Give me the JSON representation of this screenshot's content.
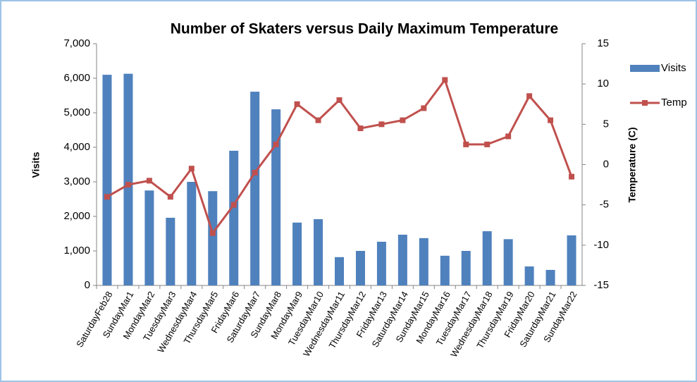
{
  "chart_data": {
    "type": "bar_line",
    "title": "Number of Skaters versus Daily Maximum Temperature",
    "y_label": "Visits",
    "y2_label": "Temperature (C)",
    "categories": [
      "SaturdayFeb28",
      "SundayMar1",
      "MondayMar2",
      "TuesdayMar3",
      "WednesdayMar4",
      "ThursdayMar5",
      "FridayMar6",
      "SaturdayMar7",
      "SundayMar8",
      "MondayMar9",
      "TuesdayMar10",
      "WednesdayMar11",
      "ThursdayMar12",
      "FridayMar13",
      "SaturdayMar14",
      "SundayMar15",
      "MondayMar16",
      "TuesdayMar17",
      "WednesdayMar18",
      "ThursdayMar19",
      "FridayMar20",
      "SaturdayMar21",
      "SundayMar22"
    ],
    "series": [
      {
        "name": "Visits",
        "type": "bar",
        "color": "#4f81bd",
        "values": [
          6100,
          6130,
          2750,
          1960,
          3000,
          2730,
          3900,
          5610,
          5100,
          1820,
          1920,
          820,
          1000,
          1265,
          1470,
          1370,
          860,
          1000,
          1570,
          1340,
          550,
          450,
          1450
        ]
      },
      {
        "name": "Temp",
        "type": "line",
        "axis": "y2",
        "color": "#c0504d",
        "values": [
          -4,
          -2.5,
          -2,
          -4,
          -0.5,
          -8.5,
          -5,
          -1,
          2.5,
          7.5,
          5.5,
          8,
          4.5,
          5,
          5.5,
          7,
          10.5,
          2.5,
          2.5,
          3.5,
          8.5,
          5.5,
          -1.5
        ]
      }
    ],
    "ylim": [
      0,
      7000
    ],
    "yticks": [
      0,
      {
        "value": 1000,
        "label": "1,000"
      },
      {
        "value": 2000,
        "label": "2,000"
      },
      {
        "value": 3000,
        "label": "3,000"
      },
      {
        "value": 4000,
        "label": "4,000"
      },
      {
        "value": 5000,
        "label": "5,000"
      },
      {
        "value": 6000,
        "label": "6,000"
      },
      {
        "value": 7000,
        "label": "7,000"
      }
    ],
    "y2lim": [
      -15,
      15
    ],
    "y2ticks": [
      -15,
      -10,
      -5,
      0,
      5,
      10,
      15
    ],
    "legend": "right"
  }
}
